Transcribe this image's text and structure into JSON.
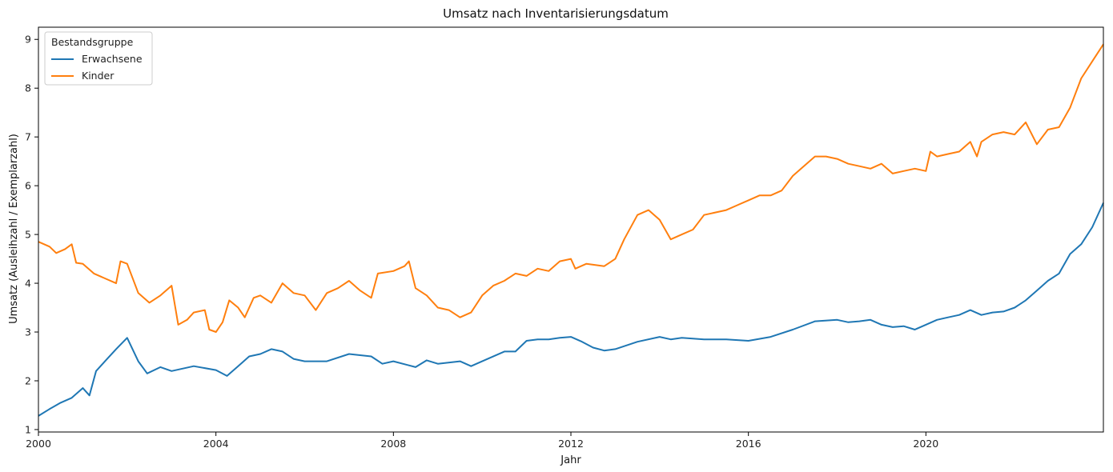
{
  "chart_data": {
    "type": "line",
    "title": "Umsatz nach Inventarisierungsdatum",
    "xlabel": "Jahr",
    "ylabel": "Umsatz (Ausleihzahl / Exemplarzahl)",
    "xlim": [
      2000,
      2024
    ],
    "ylim": [
      0.95,
      9.25
    ],
    "x_ticks": [
      2000,
      2004,
      2008,
      2012,
      2016,
      2020
    ],
    "x_tick_labels": [
      "2000",
      "2004",
      "2008",
      "2012",
      "2016",
      "2020"
    ],
    "y_ticks": [
      1,
      2,
      3,
      4,
      5,
      6,
      7,
      8,
      9
    ],
    "y_tick_labels": [
      "1",
      "2",
      "3",
      "4",
      "5",
      "6",
      "7",
      "8",
      "9"
    ],
    "grid": false,
    "legend": {
      "title": "Bestandsgruppe",
      "position": "top-left"
    },
    "colors": {
      "Erwachsene": "#1f77b4",
      "Kinder": "#ff7f0e"
    },
    "series": [
      {
        "name": "Erwachsene",
        "points": [
          [
            2000.0,
            1.28
          ],
          [
            2000.25,
            1.42
          ],
          [
            2000.5,
            1.55
          ],
          [
            2000.75,
            1.65
          ],
          [
            2001.0,
            1.85
          ],
          [
            2001.15,
            1.7
          ],
          [
            2001.3,
            2.2
          ],
          [
            2001.5,
            2.4
          ],
          [
            2001.75,
            2.65
          ],
          [
            2002.0,
            2.88
          ],
          [
            2002.25,
            2.4
          ],
          [
            2002.45,
            2.15
          ],
          [
            2002.75,
            2.28
          ],
          [
            2003.0,
            2.2
          ],
          [
            2003.5,
            2.3
          ],
          [
            2004.0,
            2.22
          ],
          [
            2004.25,
            2.1
          ],
          [
            2004.5,
            2.3
          ],
          [
            2004.75,
            2.5
          ],
          [
            2005.0,
            2.55
          ],
          [
            2005.25,
            2.65
          ],
          [
            2005.5,
            2.6
          ],
          [
            2005.75,
            2.45
          ],
          [
            2006.0,
            2.4
          ],
          [
            2006.5,
            2.4
          ],
          [
            2007.0,
            2.55
          ],
          [
            2007.5,
            2.5
          ],
          [
            2007.75,
            2.35
          ],
          [
            2008.0,
            2.4
          ],
          [
            2008.5,
            2.28
          ],
          [
            2008.75,
            2.42
          ],
          [
            2009.0,
            2.35
          ],
          [
            2009.5,
            2.4
          ],
          [
            2009.75,
            2.3
          ],
          [
            2010.0,
            2.4
          ],
          [
            2010.5,
            2.6
          ],
          [
            2010.75,
            2.6
          ],
          [
            2011.0,
            2.82
          ],
          [
            2011.25,
            2.85
          ],
          [
            2011.5,
            2.85
          ],
          [
            2011.75,
            2.88
          ],
          [
            2012.0,
            2.9
          ],
          [
            2012.25,
            2.8
          ],
          [
            2012.5,
            2.68
          ],
          [
            2012.75,
            2.62
          ],
          [
            2013.0,
            2.65
          ],
          [
            2013.5,
            2.8
          ],
          [
            2014.0,
            2.9
          ],
          [
            2014.25,
            2.85
          ],
          [
            2014.5,
            2.88
          ],
          [
            2015.0,
            2.85
          ],
          [
            2015.5,
            2.85
          ],
          [
            2016.0,
            2.82
          ],
          [
            2016.5,
            2.9
          ],
          [
            2017.0,
            3.05
          ],
          [
            2017.5,
            3.22
          ],
          [
            2018.0,
            3.25
          ],
          [
            2018.25,
            3.2
          ],
          [
            2018.5,
            3.22
          ],
          [
            2018.75,
            3.25
          ],
          [
            2019.0,
            3.15
          ],
          [
            2019.25,
            3.1
          ],
          [
            2019.5,
            3.12
          ],
          [
            2019.75,
            3.05
          ],
          [
            2020.0,
            3.15
          ],
          [
            2020.25,
            3.25
          ],
          [
            2020.5,
            3.3
          ],
          [
            2020.75,
            3.35
          ],
          [
            2021.0,
            3.45
          ],
          [
            2021.25,
            3.35
          ],
          [
            2021.5,
            3.4
          ],
          [
            2021.75,
            3.42
          ],
          [
            2022.0,
            3.5
          ],
          [
            2022.25,
            3.65
          ],
          [
            2022.5,
            3.85
          ],
          [
            2022.75,
            4.05
          ],
          [
            2023.0,
            4.2
          ],
          [
            2023.25,
            4.6
          ],
          [
            2023.5,
            4.8
          ],
          [
            2023.75,
            5.15
          ],
          [
            2024.0,
            5.65
          ]
        ]
      },
      {
        "name": "Kinder",
        "points": [
          [
            2000.0,
            4.85
          ],
          [
            2000.25,
            4.75
          ],
          [
            2000.4,
            4.62
          ],
          [
            2000.6,
            4.7
          ],
          [
            2000.75,
            4.8
          ],
          [
            2000.85,
            4.42
          ],
          [
            2001.0,
            4.4
          ],
          [
            2001.25,
            4.2
          ],
          [
            2001.5,
            4.1
          ],
          [
            2001.75,
            4.0
          ],
          [
            2001.85,
            4.45
          ],
          [
            2002.0,
            4.4
          ],
          [
            2002.25,
            3.8
          ],
          [
            2002.5,
            3.6
          ],
          [
            2002.75,
            3.75
          ],
          [
            2003.0,
            3.95
          ],
          [
            2003.15,
            3.15
          ],
          [
            2003.35,
            3.25
          ],
          [
            2003.5,
            3.4
          ],
          [
            2003.75,
            3.45
          ],
          [
            2003.85,
            3.05
          ],
          [
            2004.0,
            3.0
          ],
          [
            2004.15,
            3.2
          ],
          [
            2004.3,
            3.65
          ],
          [
            2004.5,
            3.5
          ],
          [
            2004.65,
            3.3
          ],
          [
            2004.85,
            3.7
          ],
          [
            2005.0,
            3.75
          ],
          [
            2005.25,
            3.6
          ],
          [
            2005.5,
            4.0
          ],
          [
            2005.75,
            3.8
          ],
          [
            2006.0,
            3.75
          ],
          [
            2006.25,
            3.45
          ],
          [
            2006.5,
            3.8
          ],
          [
            2006.75,
            3.9
          ],
          [
            2007.0,
            4.05
          ],
          [
            2007.25,
            3.85
          ],
          [
            2007.5,
            3.7
          ],
          [
            2007.65,
            4.2
          ],
          [
            2008.0,
            4.25
          ],
          [
            2008.25,
            4.35
          ],
          [
            2008.35,
            4.45
          ],
          [
            2008.5,
            3.9
          ],
          [
            2008.75,
            3.75
          ],
          [
            2009.0,
            3.5
          ],
          [
            2009.25,
            3.45
          ],
          [
            2009.5,
            3.3
          ],
          [
            2009.75,
            3.4
          ],
          [
            2010.0,
            3.75
          ],
          [
            2010.25,
            3.95
          ],
          [
            2010.5,
            4.05
          ],
          [
            2010.75,
            4.2
          ],
          [
            2011.0,
            4.15
          ],
          [
            2011.25,
            4.3
          ],
          [
            2011.5,
            4.25
          ],
          [
            2011.75,
            4.45
          ],
          [
            2012.0,
            4.5
          ],
          [
            2012.1,
            4.3
          ],
          [
            2012.35,
            4.4
          ],
          [
            2012.75,
            4.35
          ],
          [
            2013.0,
            4.5
          ],
          [
            2013.2,
            4.9
          ],
          [
            2013.5,
            5.4
          ],
          [
            2013.75,
            5.5
          ],
          [
            2014.0,
            5.3
          ],
          [
            2014.25,
            4.9
          ],
          [
            2014.5,
            5.0
          ],
          [
            2014.75,
            5.1
          ],
          [
            2015.0,
            5.4
          ],
          [
            2015.5,
            5.5
          ],
          [
            2015.75,
            5.6
          ],
          [
            2016.0,
            5.7
          ],
          [
            2016.25,
            5.8
          ],
          [
            2016.5,
            5.8
          ],
          [
            2016.75,
            5.9
          ],
          [
            2017.0,
            6.2
          ],
          [
            2017.25,
            6.4
          ],
          [
            2017.5,
            6.6
          ],
          [
            2017.75,
            6.6
          ],
          [
            2018.0,
            6.55
          ],
          [
            2018.25,
            6.45
          ],
          [
            2018.5,
            6.4
          ],
          [
            2018.75,
            6.35
          ],
          [
            2019.0,
            6.45
          ],
          [
            2019.25,
            6.25
          ],
          [
            2019.5,
            6.3
          ],
          [
            2019.75,
            6.35
          ],
          [
            2020.0,
            6.3
          ],
          [
            2020.1,
            6.7
          ],
          [
            2020.25,
            6.6
          ],
          [
            2020.5,
            6.65
          ],
          [
            2020.75,
            6.7
          ],
          [
            2021.0,
            6.9
          ],
          [
            2021.15,
            6.6
          ],
          [
            2021.25,
            6.9
          ],
          [
            2021.5,
            7.05
          ],
          [
            2021.75,
            7.1
          ],
          [
            2022.0,
            7.05
          ],
          [
            2022.25,
            7.3
          ],
          [
            2022.5,
            6.85
          ],
          [
            2022.75,
            7.15
          ],
          [
            2023.0,
            7.2
          ],
          [
            2023.25,
            7.6
          ],
          [
            2023.5,
            8.2
          ],
          [
            2023.75,
            8.55
          ],
          [
            2024.0,
            8.9
          ]
        ]
      }
    ]
  }
}
